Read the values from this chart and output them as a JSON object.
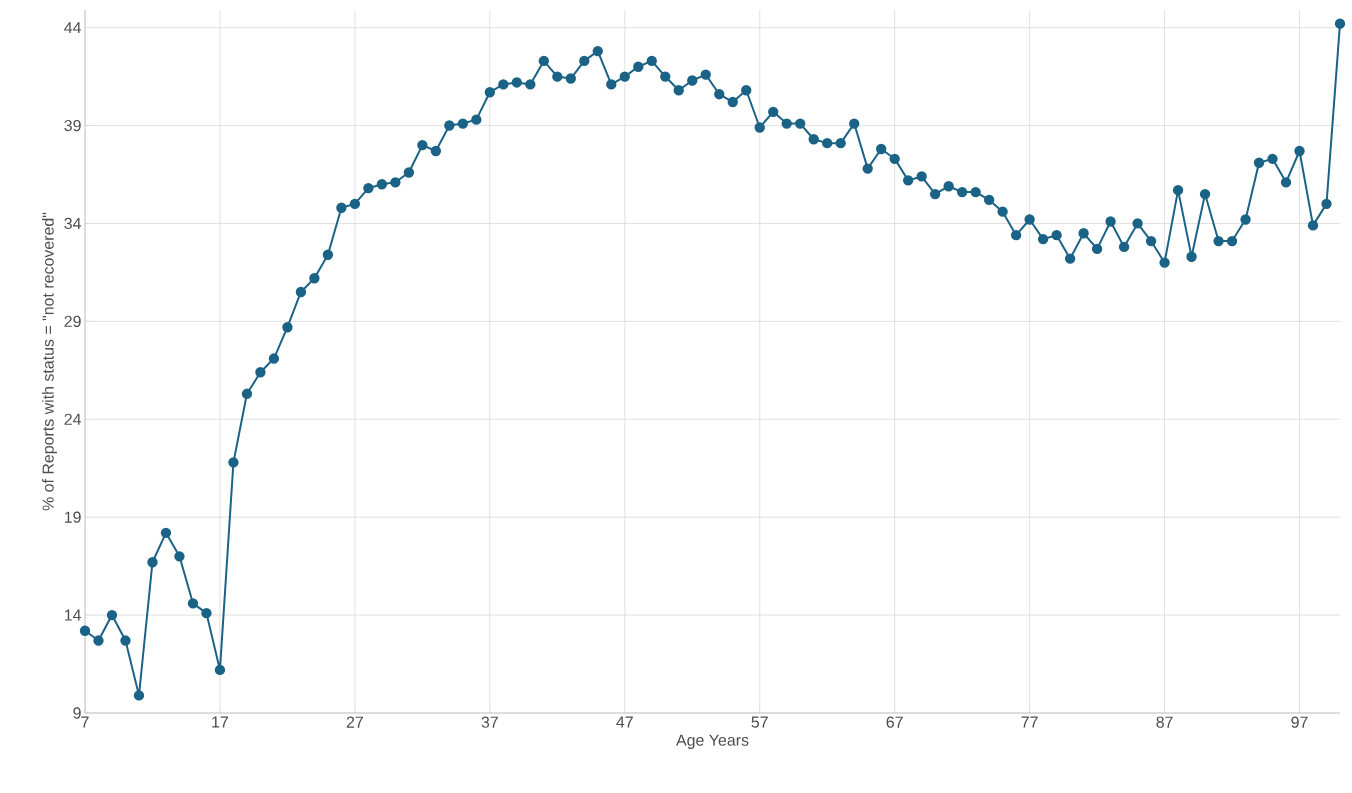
{
  "chart_data": {
    "type": "line",
    "xlabel": "Age Years",
    "ylabel": "% of Reports with status = \"not recovered\"",
    "x": [
      7,
      8,
      9,
      10,
      11,
      12,
      13,
      14,
      15,
      16,
      17,
      18,
      19,
      20,
      21,
      22,
      23,
      24,
      25,
      26,
      27,
      28,
      29,
      30,
      31,
      32,
      33,
      34,
      35,
      36,
      37,
      38,
      39,
      40,
      41,
      42,
      43,
      44,
      45,
      46,
      47,
      48,
      49,
      50,
      51,
      52,
      53,
      54,
      55,
      56,
      57,
      58,
      59,
      60,
      61,
      62,
      63,
      64,
      65,
      66,
      67,
      68,
      69,
      70,
      71,
      72,
      73,
      74,
      75,
      76,
      77,
      78,
      79,
      80,
      81,
      82,
      83,
      84,
      85,
      86,
      87,
      88,
      89,
      90,
      91,
      92,
      93,
      94,
      95,
      96,
      97,
      98,
      99,
      100
    ],
    "series": [
      {
        "color": "#1b6386",
        "values": [
          13.2,
          12.7,
          14.0,
          12.7,
          9.9,
          16.7,
          18.2,
          17.0,
          14.6,
          14.1,
          11.2,
          21.8,
          25.3,
          26.4,
          27.1,
          28.7,
          30.5,
          31.2,
          32.4,
          34.8,
          35.0,
          35.8,
          36.0,
          36.1,
          36.6,
          38.0,
          37.7,
          39.0,
          39.1,
          39.3,
          40.7,
          41.1,
          41.2,
          41.1,
          42.3,
          41.5,
          41.4,
          42.3,
          42.8,
          41.1,
          41.5,
          42.0,
          42.3,
          41.5,
          40.8,
          41.3,
          41.6,
          40.6,
          40.2,
          40.8,
          38.9,
          39.7,
          39.1,
          39.1,
          38.3,
          38.1,
          38.1,
          39.1,
          36.8,
          37.8,
          37.3,
          36.2,
          36.4,
          35.5,
          35.9,
          35.6,
          35.6,
          35.2,
          34.6,
          33.4,
          34.2,
          33.2,
          33.4,
          32.2,
          33.5,
          32.7,
          34.1,
          32.8,
          34.0,
          33.1,
          32.0,
          35.7,
          32.3,
          35.5,
          33.1,
          33.1,
          34.2,
          37.1,
          37.3,
          36.1,
          37.7,
          33.9,
          35.0,
          44.2
        ]
      }
    ],
    "xlim": [
      7,
      100
    ],
    "ylim": [
      9,
      44.9
    ],
    "xticks": [
      7,
      17,
      27,
      37,
      47,
      57,
      67,
      77,
      87,
      97
    ],
    "yticks": [
      9,
      14,
      19,
      24,
      29,
      34,
      39,
      44
    ],
    "grid": true,
    "marker": "circle",
    "line_style": "solid"
  }
}
